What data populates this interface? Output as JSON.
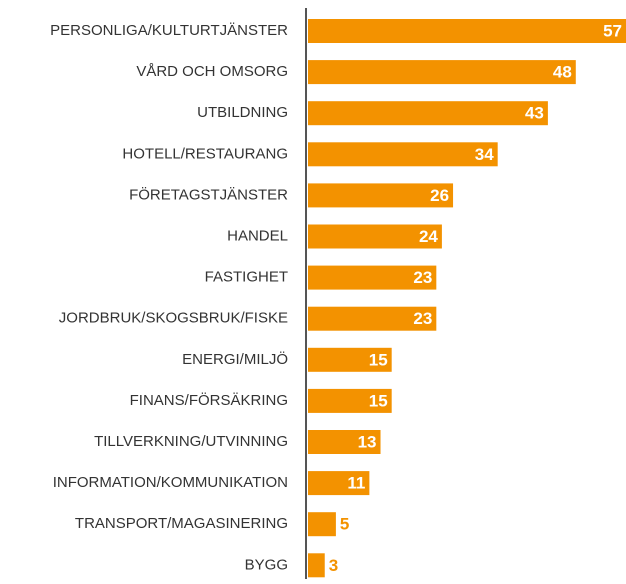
{
  "chart_data": {
    "type": "bar",
    "orientation": "horizontal",
    "color": "#f39200",
    "categories": [
      "PERSONLIGA/KULTURTJÄNSTER",
      "VÅRD OCH OMSORG",
      "UTBILDNING",
      "HOTELL/RESTAURANG",
      "FÖRETAGSTJÄNSTER",
      "HANDEL",
      "FASTIGHET",
      "JORDBRUK/SKOGSBRUK/FISKE",
      "ENERGI/MILJÖ",
      "FINANS/FÖRSÄKRING",
      "TILLVERKNING/UTVINNING",
      "INFORMATION/KOMMUNIKATION",
      "TRANSPORT/MAGASINERING",
      "BYGG"
    ],
    "values": [
      57,
      48,
      43,
      34,
      26,
      24,
      23,
      23,
      15,
      15,
      13,
      11,
      5,
      3
    ]
  }
}
